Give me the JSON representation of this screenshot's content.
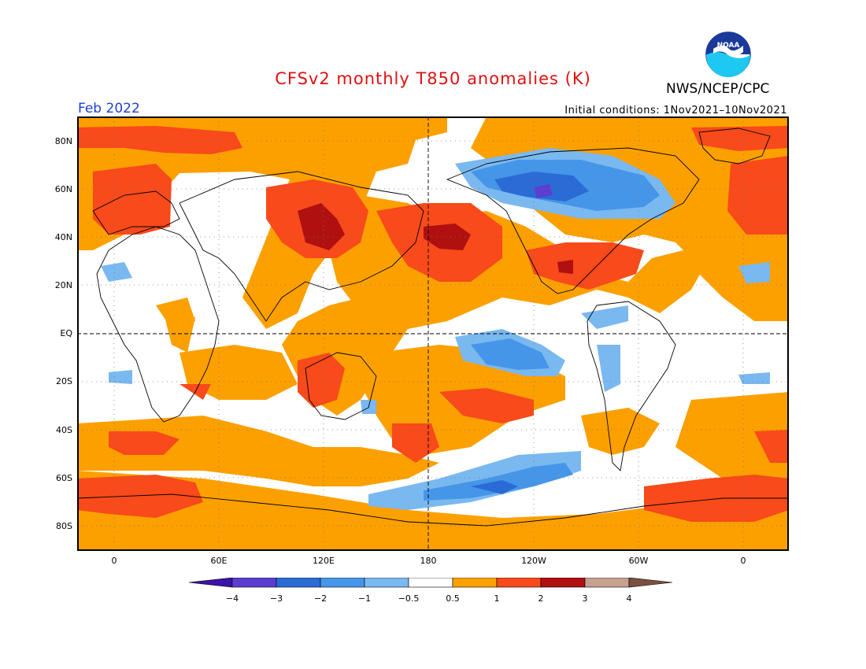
{
  "title": "CFSv2 monthly T850 anomalies (K)",
  "agency": "NWS/NCEP/CPC",
  "logo_text": "NOAA",
  "forecast_month": "Feb 2022",
  "initial_conditions": "Initial conditions: 1Nov2021–10Nov2021",
  "lat_labels": [
    "80N",
    "60N",
    "40N",
    "20N",
    "EQ",
    "20S",
    "40S",
    "60S",
    "80S"
  ],
  "lon_labels": [
    "0",
    "60E",
    "120E",
    "180",
    "120W",
    "60W",
    "0"
  ],
  "colorbar": {
    "ticks": [
      "−4",
      "−3",
      "−2",
      "−1",
      "−0.5",
      "0.5",
      "1",
      "2",
      "3",
      "4"
    ],
    "colors": [
      "#3a14a8",
      "#5a3ed0",
      "#2a6bd6",
      "#4596e8",
      "#7ab8f0",
      "#ffffff",
      "#fca000",
      "#f84a1a",
      "#b01010",
      "#c8a090",
      "#7a5040"
    ]
  }
}
